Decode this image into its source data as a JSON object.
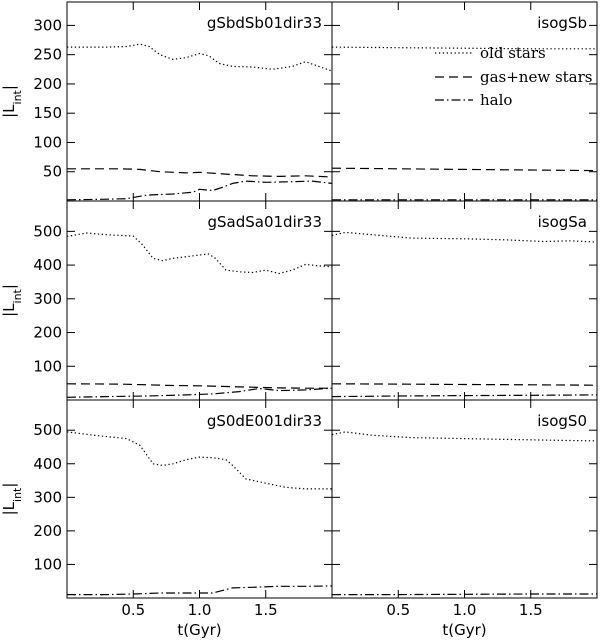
{
  "chart_data": {
    "type": "line",
    "xlabel": "t(Gyr)",
    "ylabel": "|L_int|",
    "x_ticks": [
      0.5,
      1.0,
      1.5
    ],
    "x_tick_labels": [
      "0.5",
      "1.0",
      "1.5"
    ],
    "legend": {
      "placement": "top-right panel",
      "entries": [
        {
          "label": "old stars",
          "style": "dotted"
        },
        {
          "label": "gas+new stars",
          "style": "dashed"
        },
        {
          "label": "halo",
          "style": "dash-dot"
        }
      ]
    },
    "rows": [
      {
        "ylim": [
          0,
          340
        ],
        "y_ticks": [
          50,
          100,
          150,
          200,
          250,
          300
        ],
        "y_tick_labels": [
          "50",
          "100",
          "150",
          "200",
          "250",
          "300"
        ],
        "panels": [
          {
            "label": "gSbdSb01dir33",
            "xlim": [
              0,
              2.0
            ],
            "series": [
              {
                "style": "dotted",
                "x": [
                  0.0,
                  0.3,
                  0.45,
                  0.55,
                  0.62,
                  0.7,
                  0.8,
                  0.9,
                  1.0,
                  1.07,
                  1.15,
                  1.25,
                  1.4,
                  1.55,
                  1.7,
                  1.8,
                  1.9,
                  2.0
                ],
                "y": [
                  263,
                  263,
                  264,
                  268,
                  264,
                  250,
                  242,
                  245,
                  252,
                  248,
                  235,
                  230,
                  229,
                  225,
                  230,
                  238,
                  230,
                  222
                ]
              },
              {
                "style": "dashed",
                "x": [
                  0.0,
                  0.4,
                  0.55,
                  0.7,
                  0.9,
                  1.0,
                  1.2,
                  1.4,
                  1.6,
                  1.8,
                  2.0
                ],
                "y": [
                  55,
                  55,
                  54,
                  50,
                  48,
                  49,
                  46,
                  43,
                  42,
                  43,
                  41
                ]
              },
              {
                "style": "dash-dot",
                "x": [
                  0.0,
                  0.3,
                  0.45,
                  0.6,
                  0.8,
                  0.95,
                  1.0,
                  1.1,
                  1.18,
                  1.25,
                  1.35,
                  1.5,
                  1.7,
                  1.85,
                  2.0
                ],
                "y": [
                  2,
                  3,
                  4,
                  10,
                  12,
                  15,
                  20,
                  18,
                  24,
                  30,
                  34,
                  32,
                  33,
                  34,
                  30
                ]
              }
            ]
          },
          {
            "label": "isogSb",
            "xlim": [
              0,
              2.0
            ],
            "series": [
              {
                "style": "dotted",
                "x": [
                  0.0,
                  0.5,
                  1.0,
                  1.5,
                  2.0
                ],
                "y": [
                  263,
                  262,
                  261,
                  260,
                  260
                ]
              },
              {
                "style": "dashed",
                "x": [
                  0.0,
                  0.5,
                  1.0,
                  1.5,
                  2.0
                ],
                "y": [
                  56,
                  55,
                  54,
                  53,
                  52
                ]
              },
              {
                "style": "dash-dot",
                "x": [
                  0.0,
                  0.5,
                  1.0,
                  1.5,
                  2.0
                ],
                "y": [
                  2,
                  2,
                  2,
                  2,
                  2
                ]
              }
            ]
          }
        ]
      },
      {
        "ylim": [
          0,
          590
        ],
        "y_ticks": [
          100,
          200,
          300,
          400,
          500
        ],
        "y_tick_labels": [
          "100",
          "200",
          "300",
          "400",
          "500"
        ],
        "panels": [
          {
            "label": "gSadSa01dir33",
            "xlim": [
              0,
              2.0
            ],
            "series": [
              {
                "style": "dotted",
                "x": [
                  0.0,
                  0.15,
                  0.3,
                  0.5,
                  0.57,
                  0.65,
                  0.72,
                  0.8,
                  0.9,
                  1.0,
                  1.07,
                  1.12,
                  1.2,
                  1.3,
                  1.4,
                  1.5,
                  1.6,
                  1.7,
                  1.8,
                  1.9,
                  2.0
                ],
                "y": [
                  485,
                  495,
                  490,
                  486,
                  460,
                  420,
                  413,
                  420,
                  425,
                  430,
                  433,
                  420,
                  385,
                  380,
                  378,
                  385,
                  375,
                  385,
                  402,
                  398,
                  395
                ]
              },
              {
                "style": "dashed",
                "x": [
                  0.0,
                  0.4,
                  0.6,
                  0.8,
                  1.0,
                  1.2,
                  1.4,
                  1.6,
                  1.8,
                  2.0
                ],
                "y": [
                  48,
                  47,
                  45,
                  43,
                  42,
                  40,
                  38,
                  36,
                  35,
                  35
                ]
              },
              {
                "style": "dash-dot",
                "x": [
                  0.0,
                  0.3,
                  0.6,
                  0.9,
                  1.1,
                  1.3,
                  1.45,
                  1.6,
                  1.8,
                  2.0
                ],
                "y": [
                  8,
                  10,
                  12,
                  15,
                  18,
                  25,
                  34,
                  28,
                  30,
                  35
                ]
              }
            ]
          },
          {
            "label": "isogSa",
            "xlim": [
              0,
              2.0
            ],
            "series": [
              {
                "style": "dotted",
                "x": [
                  0.0,
                  0.1,
                  0.3,
                  0.6,
                  1.0,
                  1.3,
                  1.6,
                  1.8,
                  2.0
                ],
                "y": [
                  488,
                  497,
                  490,
                  480,
                  478,
                  475,
                  470,
                  472,
                  468
                ]
              },
              {
                "style": "dashed",
                "x": [
                  0.0,
                  0.5,
                  1.0,
                  1.5,
                  2.0
                ],
                "y": [
                  48,
                  47,
                  46,
                  45,
                  44
                ]
              },
              {
                "style": "dash-dot",
                "x": [
                  0.0,
                  0.5,
                  1.0,
                  1.5,
                  2.0
                ],
                "y": [
                  10,
                  12,
                  13,
                  14,
                  15
                ]
              }
            ]
          }
        ]
      },
      {
        "ylim": [
          0,
          590
        ],
        "y_ticks": [
          100,
          200,
          300,
          400,
          500
        ],
        "y_tick_labels": [
          "100",
          "200",
          "300",
          "400",
          "500"
        ],
        "panels": [
          {
            "label": "gS0dE001dir33",
            "xlim": [
              0,
              2.0
            ],
            "series": [
              {
                "style": "dotted",
                "x": [
                  0.0,
                  0.2,
                  0.45,
                  0.55,
                  0.65,
                  0.72,
                  0.8,
                  0.9,
                  1.0,
                  1.1,
                  1.2,
                  1.25,
                  1.35,
                  1.5,
                  1.65,
                  1.8,
                  2.0
                ],
                "y": [
                  495,
                  485,
                  475,
                  455,
                  400,
                  395,
                  400,
                  412,
                  420,
                  418,
                  412,
                  395,
                  355,
                  342,
                  330,
                  325,
                  325
                ]
              },
              {
                "style": "dash-dot",
                "x": [
                  0.0,
                  0.3,
                  0.5,
                  0.7,
                  0.9,
                  1.1,
                  1.25,
                  1.4,
                  1.6,
                  1.8,
                  2.0
                ],
                "y": [
                  10,
                  10,
                  12,
                  15,
                  15,
                  15,
                  30,
                  32,
                  35,
                  35,
                  36
                ]
              }
            ]
          },
          {
            "label": "isogS0",
            "xlim": [
              0,
              2.0
            ],
            "series": [
              {
                "style": "dotted",
                "x": [
                  0.0,
                  0.1,
                  0.3,
                  0.6,
                  1.0,
                  1.4,
                  1.7,
                  2.0
                ],
                "y": [
                  487,
                  495,
                  485,
                  478,
                  475,
                  472,
                  470,
                  468
                ]
              },
              {
                "style": "dash-dot",
                "x": [
                  0.0,
                  0.5,
                  1.0,
                  1.5,
                  2.0
                ],
                "y": [
                  10,
                  10,
                  11,
                  12,
                  12
                ]
              }
            ]
          }
        ]
      }
    ]
  }
}
